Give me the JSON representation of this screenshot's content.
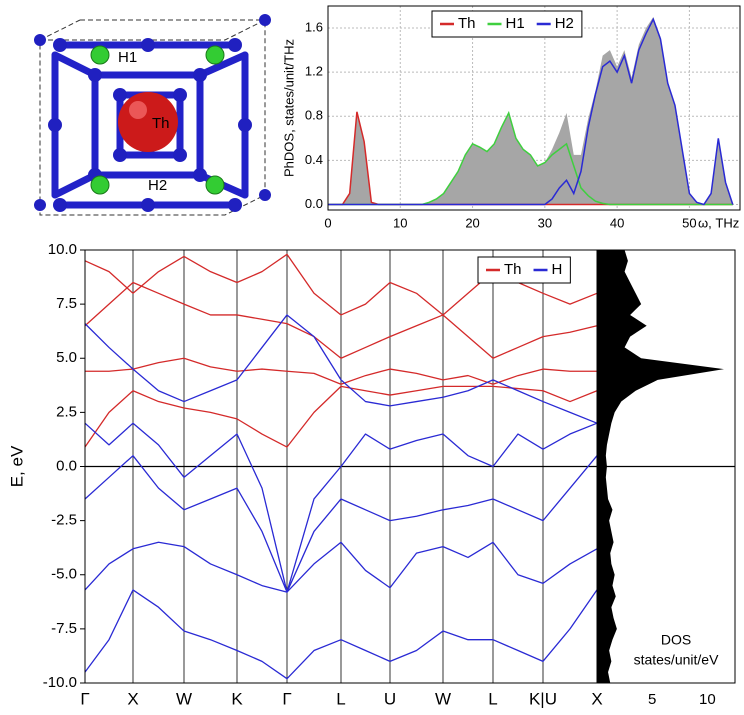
{
  "structure": {
    "labels": [
      "H1",
      "Th",
      "H2"
    ]
  },
  "chart_data": [
    {
      "type": "line",
      "ylabel": "PhDOS, states/unit/THz",
      "xlabel": "ω, THz",
      "x": [
        0,
        1,
        2,
        3,
        4,
        5,
        6,
        7,
        8,
        9,
        10,
        11,
        12,
        13,
        14,
        15,
        16,
        17,
        18,
        19,
        20,
        21,
        22,
        23,
        24,
        25,
        26,
        27,
        28,
        29,
        30,
        31,
        32,
        33,
        34,
        35,
        36,
        37,
        38,
        39,
        40,
        41,
        42,
        43,
        44,
        45,
        46,
        47,
        48,
        49,
        50,
        51,
        52,
        53,
        54,
        55,
        56
      ],
      "xlim": [
        0,
        57
      ],
      "xticks": [
        0,
        10,
        20,
        30,
        40,
        50
      ],
      "ylim": [
        -0.05,
        1.8
      ],
      "yticks": [
        {
          "value": 0,
          "label": "0.0"
        },
        0.4,
        0.8,
        1.2,
        1.6
      ],
      "grid": true,
      "series": [
        {
          "color": "#a6a6a6",
          "fill": true,
          "values": [
            0,
            0,
            0,
            0.1,
            0.84,
            0.57,
            0.02,
            0,
            0,
            0,
            0,
            0,
            0,
            0,
            0.02,
            0.05,
            0.1,
            0.2,
            0.3,
            0.45,
            0.55,
            0.52,
            0.48,
            0.55,
            0.7,
            0.83,
            0.6,
            0.5,
            0.45,
            0.35,
            0.38,
            0.5,
            0.65,
            0.83,
            0.45,
            0.45,
            0.78,
            1.03,
            1.35,
            1.4,
            1.25,
            1.4,
            1.15,
            1.45,
            1.6,
            1.7,
            1.52,
            1.12,
            0.9,
            0.5,
            0.1,
            0.02,
            0,
            0.1,
            0.6,
            0.2,
            0
          ]
        },
        {
          "name": "Th",
          "color": "#d42a2a",
          "values": [
            0,
            0,
            0,
            0.1,
            0.84,
            0.57,
            0.02,
            0,
            0,
            0,
            0,
            0,
            0,
            0,
            0,
            0,
            0,
            0,
            0,
            0,
            0,
            0,
            0,
            0,
            0,
            0,
            0,
            0,
            0,
            0,
            0,
            0,
            0,
            0,
            0,
            0,
            0,
            0,
            0,
            0,
            0,
            0,
            0,
            0,
            0,
            0,
            0,
            0,
            0,
            0,
            0,
            0,
            0,
            0,
            0,
            0,
            0
          ]
        },
        {
          "name": "H1",
          "color": "#3fcf3f",
          "values": [
            0,
            0,
            0,
            0,
            0,
            0,
            0,
            0,
            0,
            0,
            0,
            0,
            0,
            0,
            0.02,
            0.05,
            0.1,
            0.2,
            0.3,
            0.45,
            0.55,
            0.52,
            0.48,
            0.55,
            0.7,
            0.83,
            0.6,
            0.5,
            0.45,
            0.35,
            0.38,
            0.45,
            0.5,
            0.55,
            0.35,
            0.15,
            0.08,
            0.03,
            0.01,
            0,
            0,
            0,
            0,
            0,
            0,
            0,
            0,
            0,
            0,
            0,
            0,
            0,
            0,
            0,
            0,
            0,
            0
          ]
        },
        {
          "name": "H2",
          "color": "#2a2ad4",
          "values": [
            0,
            0,
            0,
            0,
            0,
            0,
            0,
            0,
            0,
            0,
            0,
            0,
            0,
            0,
            0,
            0,
            0,
            0,
            0,
            0,
            0,
            0,
            0,
            0,
            0,
            0,
            0,
            0,
            0,
            0,
            0,
            0.05,
            0.15,
            0.22,
            0.1,
            0.3,
            0.7,
            1.0,
            1.25,
            1.3,
            1.2,
            1.35,
            1.1,
            1.4,
            1.55,
            1.68,
            1.5,
            1.1,
            0.9,
            0.5,
            0.1,
            0.02,
            0,
            0.1,
            0.6,
            0.2,
            0
          ]
        }
      ]
    },
    {
      "type": "band-structure",
      "ylabel": "E, eV",
      "x": [
        0,
        24,
        48,
        73.5,
        99,
        125.5,
        152,
        177,
        202,
        229,
        256,
        280.5,
        305,
        331.5,
        358,
        383,
        408,
        433,
        458,
        485,
        512
      ],
      "xlim": [
        0,
        512
      ],
      "xticks": [
        {
          "value": 0,
          "label": "Γ"
        },
        {
          "value": 48,
          "label": "X"
        },
        {
          "value": 99,
          "label": "W"
        },
        {
          "value": 152,
          "label": "K"
        },
        {
          "value": 202,
          "label": "Γ"
        },
        {
          "value": 256,
          "label": "L"
        },
        {
          "value": 305,
          "label": "U"
        },
        {
          "value": 358,
          "label": "W"
        },
        {
          "value": 408,
          "label": "L"
        },
        {
          "value": 458,
          "label": "K|U"
        },
        {
          "value": 512,
          "label": "X"
        }
      ],
      "ylim": [
        -10,
        10
      ],
      "yticks": [
        {
          "value": -10,
          "label": "-10.0"
        },
        -7.5,
        {
          "value": -5,
          "label": "-5.0"
        },
        -2.5,
        {
          "value": 0,
          "label": "0.0"
        },
        2.5,
        {
          "value": 5,
          "label": "5.0"
        },
        7.5,
        {
          "value": 10,
          "label": "10.0"
        }
      ],
      "zero_line": true,
      "series": [
        {
          "name": "Th",
          "color": "#d42a2a",
          "bands": [
            [
              0.9,
              2.5,
              3.5,
              3.0,
              2.7,
              2.5,
              2.2,
              1.5,
              0.9,
              2.5,
              3.7,
              3.5,
              3.3,
              3.5,
              3.7,
              3.7,
              3.7,
              3.6,
              3.5,
              3.0,
              3.5
            ],
            [
              4.4,
              4.4,
              4.5,
              4.8,
              5.0,
              4.6,
              4.4,
              4.5,
              4.4,
              4.3,
              3.8,
              4.2,
              4.5,
              4.3,
              4.0,
              4.2,
              3.8,
              4.2,
              4.5,
              4.4,
              4.4
            ],
            [
              6.5,
              7.5,
              8.5,
              8.0,
              7.5,
              7.0,
              7.0,
              6.8,
              6.6,
              6.0,
              5.0,
              5.5,
              6.0,
              6.5,
              7.0,
              6.0,
              5.0,
              5.5,
              6.0,
              6.2,
              6.5
            ],
            [
              9.5,
              9.0,
              8.0,
              9.0,
              9.7,
              9.0,
              8.5,
              9.0,
              9.8,
              8.0,
              7.0,
              7.5,
              8.5,
              8.0,
              7.0,
              8.0,
              9.0,
              8.5,
              8.0,
              7.5,
              8.0
            ]
          ]
        },
        {
          "name": "H",
          "color": "#2a2ad4",
          "bands": [
            [
              -9.5,
              -8,
              -5.7,
              -6.5,
              -7.6,
              -8,
              -8.5,
              -9,
              -9.8,
              -8.5,
              -8,
              -8.5,
              -9,
              -8.5,
              -7.6,
              -8,
              -8,
              -8.5,
              -9,
              -7.5,
              -5.7
            ],
            [
              -5.7,
              -4.5,
              -3.8,
              -3.5,
              -3.7,
              -4.5,
              -5.0,
              -5.5,
              -5.8,
              -4.5,
              -3.5,
              -4.8,
              -5.6,
              -4.0,
              -3.7,
              -4.2,
              -3.5,
              -5,
              -5.4,
              -4.5,
              -3.8
            ],
            [
              -1.5,
              -0.5,
              0.5,
              -1.0,
              -2.0,
              -1.5,
              -1.0,
              -3.0,
              -5.8,
              -3.0,
              -1.5,
              -2.0,
              -2.5,
              -2.3,
              -2.0,
              -1.8,
              -1.5,
              -2.0,
              -2.5,
              -1.0,
              0.5
            ],
            [
              2.0,
              1.0,
              2.0,
              1.0,
              -0.5,
              0.5,
              1.5,
              -1.0,
              -5.8,
              -1.5,
              0.0,
              1.5,
              0.8,
              1.2,
              1.5,
              0.5,
              0.0,
              1.5,
              0.8,
              1.5,
              2.0
            ],
            [
              6.6,
              5.5,
              4.5,
              3.5,
              3.0,
              3.5,
              4.0,
              5.5,
              7.0,
              6.0,
              4.0,
              3.0,
              2.8,
              3.0,
              3.2,
              3.5,
              4.0,
              3.5,
              3.0,
              2.5,
              2.0
            ]
          ]
        }
      ]
    },
    {
      "type": "area",
      "xlabel": [
        "DOS",
        "states/unit/eV"
      ],
      "xlim": [
        0,
        12.5
      ],
      "xticks": [
        5,
        10
      ],
      "ylim": [
        -10,
        10
      ],
      "color": "#000000",
      "y": [
        -10,
        -9.5,
        -9,
        -8.5,
        -8,
        -7.5,
        -7,
        -6.5,
        -6,
        -5.5,
        -5,
        -4.5,
        -4,
        -3.5,
        -3,
        -2.5,
        -2,
        -1.5,
        -1,
        -0.5,
        0,
        0.5,
        1,
        1.5,
        2,
        2.5,
        3,
        3.5,
        4,
        4.5,
        5,
        5.5,
        6,
        6.5,
        7,
        7.5,
        8,
        8.5,
        9,
        9.5,
        10
      ],
      "values": [
        1.2,
        1.0,
        1.3,
        1.1,
        1.4,
        1.8,
        1.5,
        1.3,
        1.7,
        1.4,
        1.6,
        1.3,
        1.2,
        1.5,
        1.3,
        1.1,
        1.4,
        1.0,
        0.9,
        0.8,
        0.9,
        0.8,
        0.9,
        1.1,
        1.3,
        1.6,
        2.2,
        3.5,
        5.5,
        11.5,
        4.0,
        2.5,
        3.0,
        4.5,
        3.0,
        4.0,
        3.5,
        3.0,
        2.5,
        2.8,
        2.5
      ]
    }
  ]
}
